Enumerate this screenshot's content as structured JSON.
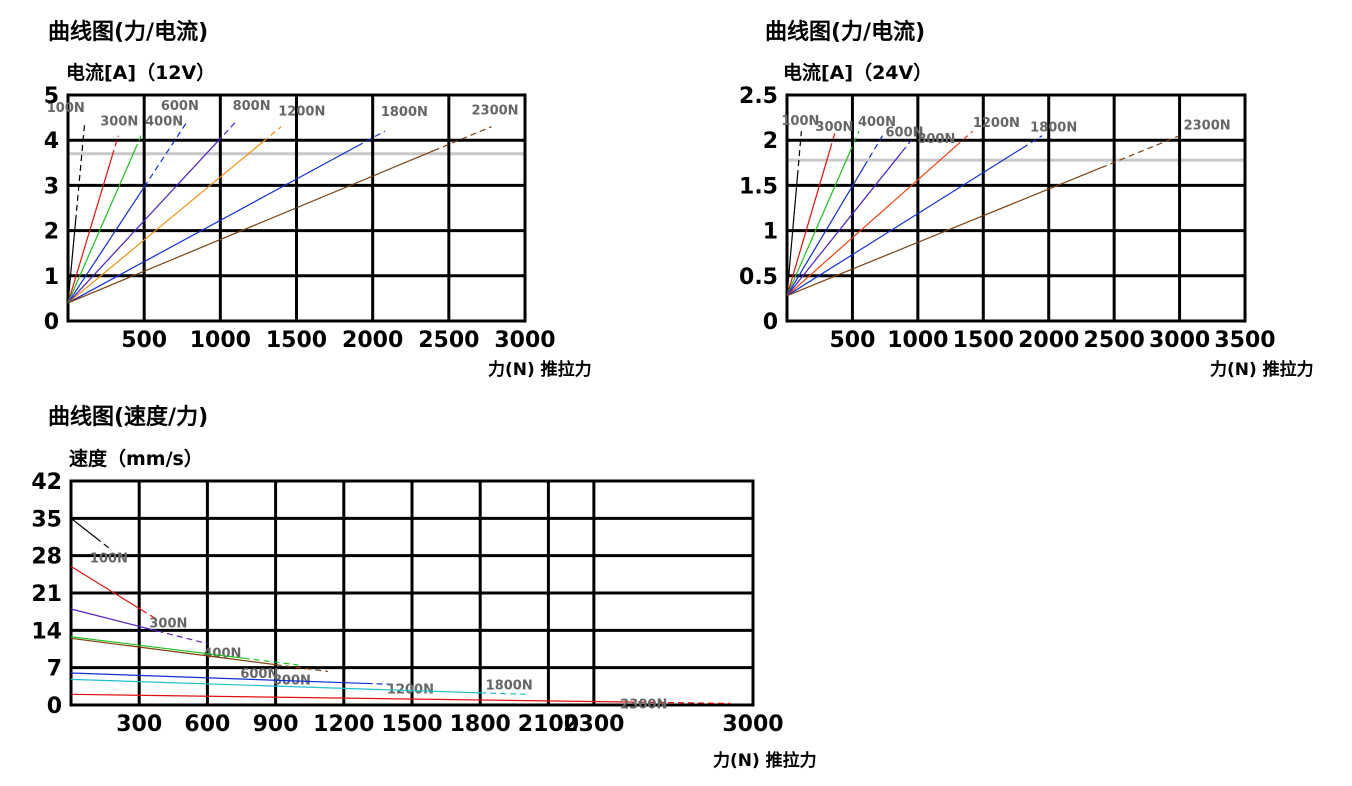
{
  "chart_data": [
    {
      "type": "line",
      "title": "曲线图(力/电流)",
      "ylabel": "电流[A]（12V）",
      "xlabel": "力(N) 推拉力",
      "xlim": [
        0,
        3000
      ],
      "ylim": [
        0,
        5
      ],
      "xticks": [
        500,
        1000,
        1500,
        2000,
        2500,
        3000
      ],
      "yticks": [
        0,
        1,
        2,
        3,
        4,
        5
      ],
      "grid": true,
      "rated_line": {
        "y": 3.7,
        "color": "#c8c8c8"
      },
      "series": [
        {
          "name": "100N",
          "color": "#000000",
          "x": [
            0,
            110
          ],
          "y": [
            0.4,
            4.4
          ],
          "solid_to_x": 50
        },
        {
          "name": "300N",
          "color": "#e01010",
          "x": [
            0,
            330
          ],
          "y": [
            0.4,
            4.1
          ],
          "solid_to_x": 290
        },
        {
          "name": "400N",
          "color": "#20c020",
          "x": [
            0,
            480
          ],
          "y": [
            0.4,
            4.1
          ],
          "solid_to_x": 440
        },
        {
          "name": "600N",
          "color": "#1030d0",
          "x": [
            0,
            780
          ],
          "y": [
            0.4,
            4.4
          ],
          "solid_to_x": 500
        },
        {
          "name": "800N",
          "color": "#5020c0",
          "x": [
            0,
            1100
          ],
          "y": [
            0.4,
            4.4
          ],
          "solid_to_x": 980
        },
        {
          "name": "1200N",
          "color": "#f09010",
          "x": [
            0,
            1400
          ],
          "y": [
            0.4,
            4.3
          ],
          "solid_to_x": 1280
        },
        {
          "name": "1800N",
          "color": "#1030d0",
          "x": [
            0,
            2080
          ],
          "y": [
            0.4,
            4.2
          ],
          "solid_to_x": 1900
        },
        {
          "name": "2300N",
          "color": "#7a4010",
          "x": [
            0,
            2780
          ],
          "y": [
            0.4,
            4.3
          ],
          "solid_to_x": 2400
        }
      ]
    },
    {
      "type": "line",
      "title": "曲线图(力/电流)",
      "ylabel": "电流[A]（24V）",
      "xlabel": "力(N) 推拉力",
      "xlim": [
        0,
        3500
      ],
      "ylim": [
        0,
        2.5
      ],
      "xticks": [
        500,
        1000,
        1500,
        2000,
        2500,
        3000,
        3500
      ],
      "yticks": [
        0,
        0.5,
        1,
        1.5,
        2,
        2.5
      ],
      "grid": true,
      "rated_line": {
        "y": 1.78,
        "color": "#c8c8c8"
      },
      "series": [
        {
          "name": "100N",
          "color": "#000000",
          "x": [
            0,
            110
          ],
          "y": [
            0.28,
            2.1
          ],
          "solid_to_x": 80
        },
        {
          "name": "300N",
          "color": "#e01010",
          "x": [
            0,
            370
          ],
          "y": [
            0.28,
            2.1
          ],
          "solid_to_x": 330
        },
        {
          "name": "400N",
          "color": "#20c020",
          "x": [
            0,
            550
          ],
          "y": [
            0.28,
            2.1
          ],
          "solid_to_x": 480
        },
        {
          "name": "600N",
          "color": "#1030d0",
          "x": [
            0,
            730
          ],
          "y": [
            0.28,
            2.05
          ],
          "solid_to_x": 590
        },
        {
          "name": "800N",
          "color": "#5020c0",
          "x": [
            0,
            950
          ],
          "y": [
            0.28,
            2.0
          ],
          "solid_to_x": 880
        },
        {
          "name": "1200N",
          "color": "#f04010",
          "x": [
            0,
            1420
          ],
          "y": [
            0.28,
            2.1
          ],
          "solid_to_x": 1290
        },
        {
          "name": "1800N",
          "color": "#1030d0",
          "x": [
            0,
            1950
          ],
          "y": [
            0.28,
            2.05
          ],
          "solid_to_x": 1800
        },
        {
          "name": "2300N",
          "color": "#7a4010",
          "x": [
            0,
            3000
          ],
          "y": [
            0.28,
            2.05
          ],
          "solid_to_x": 2400
        }
      ]
    },
    {
      "type": "line",
      "title": "曲线图(速度/力)",
      "ylabel": "速度（mm/s）",
      "xlabel": "力(N) 推拉力",
      "xlim": [
        0,
        3000
      ],
      "ylim": [
        0,
        42
      ],
      "xticks": [
        300,
        600,
        900,
        1200,
        1500,
        1800,
        2100,
        2300,
        3000
      ],
      "yticks": [
        0,
        7,
        14,
        21,
        28,
        35,
        42
      ],
      "grid": true,
      "series": [
        {
          "name": "100N",
          "color": "#000000",
          "x": [
            0,
            180
          ],
          "y": [
            35,
            29
          ],
          "solid_to_x": 110
        },
        {
          "name": "300N",
          "color": "#e01010",
          "x": [
            0,
            380
          ],
          "y": [
            26,
            16
          ],
          "solid_to_x": 310
        },
        {
          "name": "400N",
          "color": "#6020c0",
          "x": [
            0,
            600
          ],
          "y": [
            18,
            11.5
          ],
          "solid_to_x": 380
        },
        {
          "name": "600N",
          "color": "#20c020",
          "x": [
            0,
            1000
          ],
          "y": [
            12.8,
            7.5
          ],
          "solid_to_x": 760
        },
        {
          "name": "800N",
          "color": "#7a4010",
          "x": [
            0,
            1130
          ],
          "y": [
            12.5,
            6.3
          ],
          "solid_to_x": 900
        },
        {
          "name": "1200N",
          "color": "#1030d0",
          "x": [
            0,
            1460
          ],
          "y": [
            6.0,
            3.8
          ],
          "solid_to_x": 1300
        },
        {
          "name": "1800N",
          "color": "#20c0d0",
          "x": [
            0,
            2000
          ],
          "y": [
            4.8,
            2.0
          ],
          "solid_to_x": 1800
        },
        {
          "name": "2300N",
          "color": "#e01010",
          "x": [
            0,
            2900
          ],
          "y": [
            2.0,
            0.3
          ],
          "solid_to_x": 2450
        }
      ]
    }
  ]
}
